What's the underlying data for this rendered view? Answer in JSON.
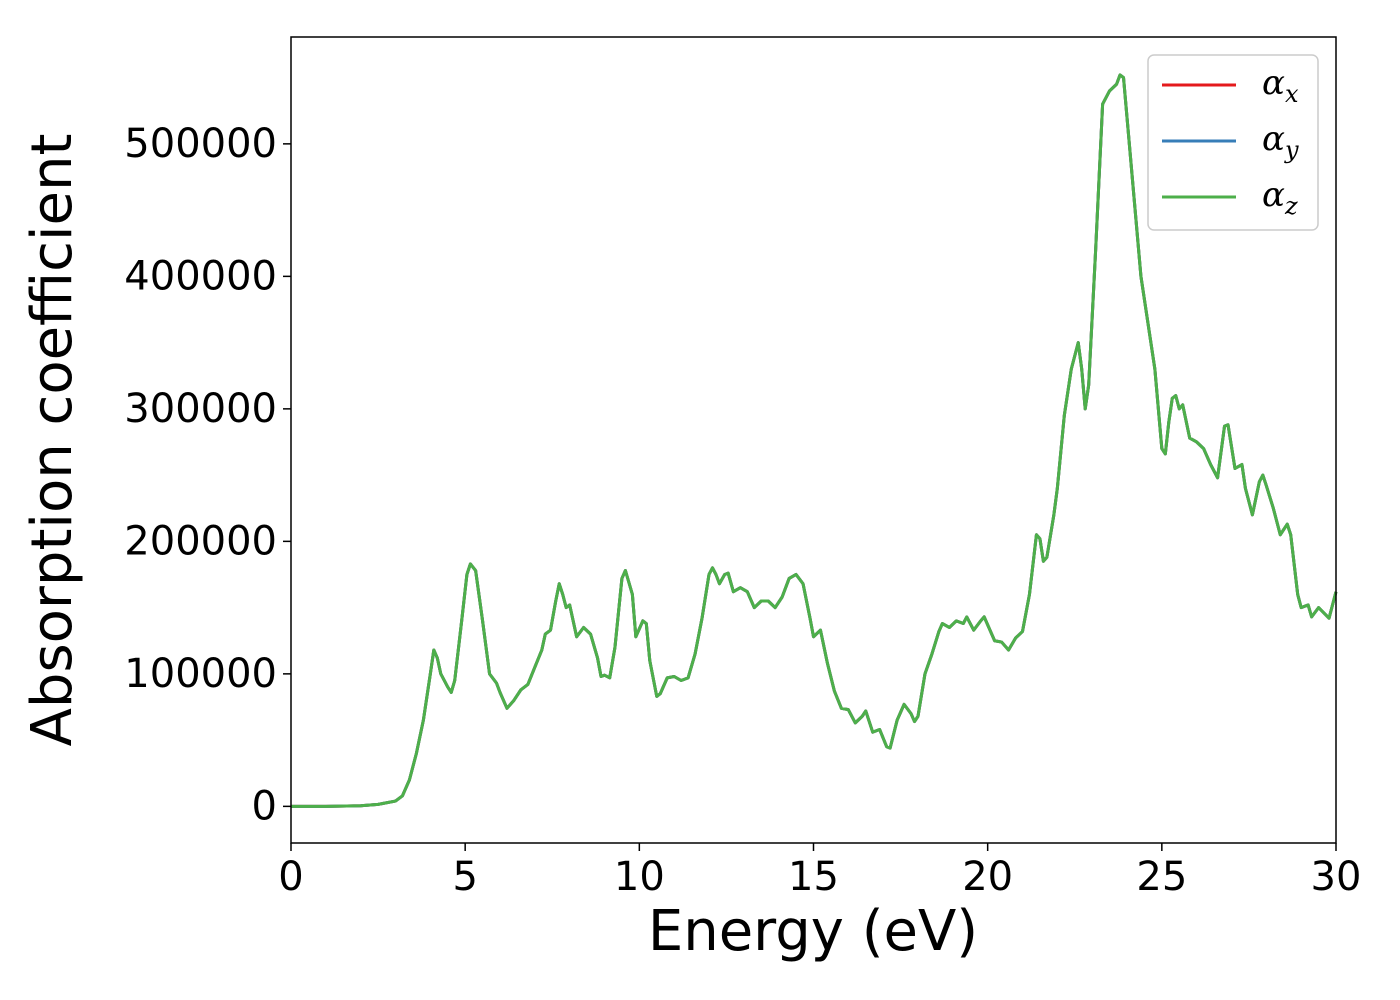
{
  "chart_data": {
    "type": "line",
    "xlabel": "Energy (eV)",
    "ylabel": "Absorption coefficient",
    "x": [
      0,
      1,
      2,
      2.5,
      3,
      3.2,
      3.4,
      3.6,
      3.8,
      4.0,
      4.1,
      4.2,
      4.3,
      4.5,
      4.6,
      4.7,
      4.9,
      5.05,
      5.15,
      5.3,
      5.5,
      5.7,
      5.9,
      6.0,
      6.2,
      6.4,
      6.6,
      6.8,
      7.0,
      7.2,
      7.3,
      7.45,
      7.6,
      7.7,
      7.8,
      7.9,
      8.0,
      8.1,
      8.2,
      8.4,
      8.6,
      8.8,
      8.9,
      9.0,
      9.15,
      9.3,
      9.5,
      9.6,
      9.8,
      9.9,
      10.1,
      10.2,
      10.3,
      10.5,
      10.6,
      10.8,
      11.0,
      11.2,
      11.4,
      11.6,
      11.8,
      12.0,
      12.1,
      12.2,
      12.3,
      12.45,
      12.55,
      12.7,
      12.9,
      13.1,
      13.3,
      13.5,
      13.7,
      13.9,
      14.1,
      14.3,
      14.5,
      14.7,
      14.9,
      15.0,
      15.2,
      15.4,
      15.6,
      15.8,
      16.0,
      16.2,
      16.4,
      16.5,
      16.7,
      16.9,
      17.1,
      17.2,
      17.4,
      17.6,
      17.8,
      17.9,
      18.0,
      18.2,
      18.4,
      18.6,
      18.7,
      18.9,
      19.1,
      19.3,
      19.4,
      19.6,
      19.8,
      19.9,
      20.2,
      20.4,
      20.6,
      20.8,
      21.0,
      21.2,
      21.4,
      21.5,
      21.6,
      21.7,
      21.9,
      22.0,
      22.2,
      22.4,
      22.6,
      22.7,
      22.8,
      22.9,
      23.1,
      23.3,
      23.5,
      23.7,
      23.8,
      23.9,
      24.0,
      24.2,
      24.4,
      24.6,
      24.8,
      25.0,
      25.1,
      25.2,
      25.3,
      25.4,
      25.5,
      25.6,
      25.8,
      26.0,
      26.2,
      26.4,
      26.6,
      26.8,
      26.9,
      27.1,
      27.3,
      27.4,
      27.6,
      27.8,
      27.9,
      28.0,
      28.2,
      28.4,
      28.6,
      28.7,
      28.9,
      29.0,
      29.2,
      29.3,
      29.5,
      29.8,
      30.0
    ],
    "series": [
      {
        "name": "αx",
        "color": "#e41a1c",
        "values": [
          0,
          0,
          500,
          1500,
          4000,
          8000,
          20000,
          40000,
          65000,
          100000,
          118000,
          112000,
          100000,
          90000,
          86000,
          95000,
          140000,
          175000,
          183000,
          178000,
          140000,
          100000,
          93000,
          86000,
          74000,
          80000,
          88000,
          92000,
          105000,
          118000,
          130000,
          133000,
          155000,
          168000,
          160000,
          150000,
          152000,
          140000,
          128000,
          135000,
          130000,
          112000,
          98000,
          99000,
          97000,
          120000,
          172000,
          178000,
          160000,
          128000,
          140000,
          138000,
          110000,
          83000,
          85000,
          97000,
          98000,
          95000,
          97000,
          115000,
          142000,
          175000,
          180000,
          175000,
          168000,
          175000,
          176000,
          162000,
          165000,
          162000,
          150000,
          155000,
          155000,
          150000,
          158000,
          172000,
          175000,
          168000,
          142000,
          128000,
          133000,
          108000,
          87000,
          74000,
          73000,
          63000,
          68000,
          72000,
          56000,
          58000,
          45000,
          44000,
          65000,
          77000,
          70000,
          64000,
          68000,
          100000,
          115000,
          132000,
          138000,
          135000,
          140000,
          138000,
          143000,
          133000,
          140000,
          143000,
          125000,
          124000,
          118000,
          127000,
          132000,
          160000,
          205000,
          202000,
          185000,
          188000,
          220000,
          240000,
          295000,
          330000,
          350000,
          330000,
          300000,
          318000,
          420000,
          530000,
          540000,
          545000,
          552000,
          550000,
          520000,
          460000,
          400000,
          365000,
          330000,
          270000,
          266000,
          290000,
          308000,
          310000,
          300000,
          303000,
          278000,
          275000,
          270000,
          258000,
          248000,
          287000,
          288000,
          255000,
          258000,
          240000,
          220000,
          245000,
          250000,
          242000,
          225000,
          205000,
          213000,
          205000,
          160000,
          150000,
          152000,
          143000,
          150000,
          142000,
          162000
        ]
      },
      {
        "name": "αy",
        "color": "#377eb8",
        "values": [
          0,
          0,
          500,
          1500,
          4000,
          8000,
          20000,
          40000,
          65000,
          100000,
          118000,
          112000,
          100000,
          90000,
          86000,
          95000,
          140000,
          175000,
          183000,
          178000,
          140000,
          100000,
          93000,
          86000,
          74000,
          80000,
          88000,
          92000,
          105000,
          118000,
          130000,
          133000,
          155000,
          168000,
          160000,
          150000,
          152000,
          140000,
          128000,
          135000,
          130000,
          112000,
          98000,
          99000,
          97000,
          120000,
          172000,
          178000,
          160000,
          128000,
          140000,
          138000,
          110000,
          83000,
          85000,
          97000,
          98000,
          95000,
          97000,
          115000,
          142000,
          175000,
          180000,
          175000,
          168000,
          175000,
          176000,
          162000,
          165000,
          162000,
          150000,
          155000,
          155000,
          150000,
          158000,
          172000,
          175000,
          168000,
          142000,
          128000,
          133000,
          108000,
          87000,
          74000,
          73000,
          63000,
          68000,
          72000,
          56000,
          58000,
          45000,
          44000,
          65000,
          77000,
          70000,
          64000,
          68000,
          100000,
          115000,
          132000,
          138000,
          135000,
          140000,
          138000,
          143000,
          133000,
          140000,
          143000,
          125000,
          124000,
          118000,
          127000,
          132000,
          160000,
          205000,
          202000,
          185000,
          188000,
          220000,
          240000,
          295000,
          330000,
          350000,
          330000,
          300000,
          318000,
          420000,
          530000,
          540000,
          545000,
          552000,
          550000,
          520000,
          460000,
          400000,
          365000,
          330000,
          270000,
          266000,
          290000,
          308000,
          310000,
          300000,
          303000,
          278000,
          275000,
          270000,
          258000,
          248000,
          287000,
          288000,
          255000,
          258000,
          240000,
          220000,
          245000,
          250000,
          242000,
          225000,
          205000,
          213000,
          205000,
          160000,
          150000,
          152000,
          143000,
          150000,
          142000,
          162000
        ]
      },
      {
        "name": "αz",
        "color": "#4daf4a",
        "values": [
          0,
          0,
          500,
          1500,
          4000,
          8000,
          20000,
          40000,
          65000,
          100000,
          118000,
          112000,
          100000,
          90000,
          86000,
          95000,
          140000,
          175000,
          183000,
          178000,
          140000,
          100000,
          93000,
          86000,
          74000,
          80000,
          88000,
          92000,
          105000,
          118000,
          130000,
          133000,
          155000,
          168000,
          160000,
          150000,
          152000,
          140000,
          128000,
          135000,
          130000,
          112000,
          98000,
          99000,
          97000,
          120000,
          172000,
          178000,
          160000,
          128000,
          140000,
          138000,
          110000,
          83000,
          85000,
          97000,
          98000,
          95000,
          97000,
          115000,
          142000,
          175000,
          180000,
          175000,
          168000,
          175000,
          176000,
          162000,
          165000,
          162000,
          150000,
          155000,
          155000,
          150000,
          158000,
          172000,
          175000,
          168000,
          142000,
          128000,
          133000,
          108000,
          87000,
          74000,
          73000,
          63000,
          68000,
          72000,
          56000,
          58000,
          45000,
          44000,
          65000,
          77000,
          70000,
          64000,
          68000,
          100000,
          115000,
          132000,
          138000,
          135000,
          140000,
          138000,
          143000,
          133000,
          140000,
          143000,
          125000,
          124000,
          118000,
          127000,
          132000,
          160000,
          205000,
          202000,
          185000,
          188000,
          220000,
          240000,
          295000,
          330000,
          350000,
          330000,
          300000,
          318000,
          420000,
          530000,
          540000,
          545000,
          552000,
          550000,
          520000,
          460000,
          400000,
          365000,
          330000,
          270000,
          266000,
          290000,
          308000,
          310000,
          300000,
          303000,
          278000,
          275000,
          270000,
          258000,
          248000,
          287000,
          288000,
          255000,
          258000,
          240000,
          220000,
          245000,
          250000,
          242000,
          225000,
          205000,
          213000,
          205000,
          160000,
          150000,
          152000,
          143000,
          150000,
          142000,
          162000
        ]
      }
    ],
    "xlim": [
      0,
      30
    ],
    "xticks": [
      0,
      5,
      10,
      15,
      20,
      25,
      30
    ],
    "ylim": [
      -27650,
      580650
    ],
    "yticks": [
      0,
      100000,
      200000,
      300000,
      400000,
      500000
    ],
    "legend": "upper right"
  }
}
